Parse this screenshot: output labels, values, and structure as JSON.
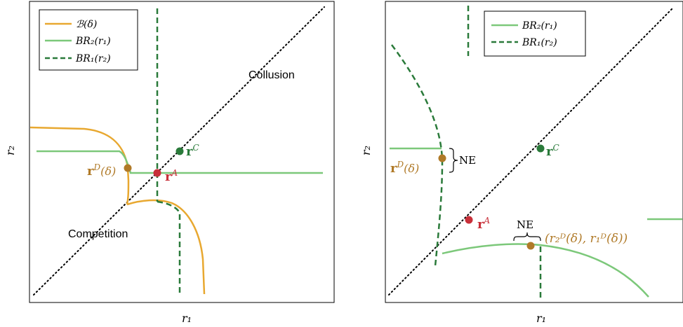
{
  "colors": {
    "orange": "#e8a830",
    "light_green": "#7cc87a",
    "dark_green": "#2a7a3a",
    "red": "#c8303a",
    "brown": "#b07a28",
    "axis": "#000000"
  },
  "left_panel": {
    "legend": {
      "item1": "ℬ(δ)",
      "item2": "BR₂(r₁)",
      "item3": "BR₁(r₂)"
    },
    "ylabel": "r₂",
    "xlabel": "r₁",
    "text_collusion": "Collusion",
    "text_competition": "Competition",
    "point_rC_label": "r",
    "point_rC_sup": "C",
    "point_rA_label": "r",
    "point_rA_sup": "A",
    "point_rD_label": "r",
    "point_rD_sup": "D",
    "point_rD_suffix": "(δ)"
  },
  "right_panel": {
    "legend": {
      "item1": "BR₂(r₁)",
      "item2": "BR₁(r₂)"
    },
    "ylabel": "r₂",
    "xlabel": "r₁",
    "point_rC_label": "r",
    "point_rC_sup": "C",
    "point_rA_label": "r",
    "point_rA_sup": "A",
    "point_rD_label": "r",
    "point_rD_sup": "D",
    "point_rD_suffix": "(δ)",
    "ne_label_1": "NE",
    "ne_label_2": "NE",
    "tuple_label": "(r₂ᴰ(δ), r₁ᴰ(δ))"
  }
}
